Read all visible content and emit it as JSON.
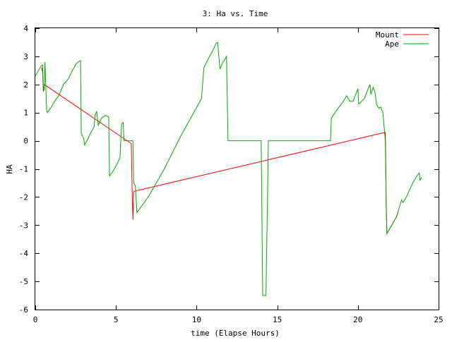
{
  "chart_data": {
    "type": "line",
    "title": "3: Ha vs. Time",
    "xlabel": "time (Elapse Hours)",
    "ylabel": "HA",
    "xlim": [
      0,
      25
    ],
    "ylim": [
      -6,
      4
    ],
    "xticks": [
      0,
      5,
      10,
      15,
      20,
      25
    ],
    "yticks": [
      -6,
      -5,
      -4,
      -3,
      -2,
      -1,
      0,
      1,
      2,
      3,
      4
    ],
    "grid": false,
    "legend_position": "top-right",
    "series": [
      {
        "name": "Mount",
        "color": "#ff0000",
        "points": [
          [
            0.38,
            2.6
          ],
          [
            0.45,
            2.45
          ],
          [
            0.5,
            1.75
          ],
          [
            0.55,
            2.0
          ],
          [
            5.95,
            -0.1
          ],
          [
            6.0,
            -1.6
          ],
          [
            6.02,
            -2.2
          ],
          [
            6.05,
            -2.8
          ],
          [
            6.1,
            -1.8
          ],
          [
            21.7,
            0.3
          ],
          [
            21.72,
            -0.5
          ],
          [
            21.75,
            -2.2
          ],
          [
            21.8,
            -3.3
          ],
          [
            22.4,
            -2.7
          ],
          [
            22.5,
            -2.5
          ]
        ]
      },
      {
        "name": "Ape",
        "color": "#00aa00",
        "points": [
          [
            0.0,
            2.3
          ],
          [
            0.35,
            2.65
          ],
          [
            0.45,
            2.7
          ],
          [
            0.5,
            1.8
          ],
          [
            0.55,
            1.8
          ],
          [
            0.6,
            2.8
          ],
          [
            0.62,
            2.4
          ],
          [
            0.7,
            1.1
          ],
          [
            0.75,
            1.0
          ],
          [
            1.0,
            1.2
          ],
          [
            1.2,
            1.4
          ],
          [
            1.45,
            1.6
          ],
          [
            1.75,
            2.0
          ],
          [
            1.9,
            2.1
          ],
          [
            2.05,
            2.2
          ],
          [
            2.3,
            2.5
          ],
          [
            2.55,
            2.75
          ],
          [
            2.8,
            2.85
          ],
          [
            2.85,
            0.25
          ],
          [
            3.0,
            0.1
          ],
          [
            3.05,
            -0.15
          ],
          [
            3.25,
            0.05
          ],
          [
            3.45,
            0.3
          ],
          [
            3.65,
            0.5
          ],
          [
            3.7,
            0.9
          ],
          [
            3.8,
            1.05
          ],
          [
            3.9,
            0.55
          ],
          [
            4.1,
            0.8
          ],
          [
            4.35,
            0.9
          ],
          [
            4.55,
            0.85
          ],
          [
            4.6,
            -1.25
          ],
          [
            4.8,
            -1.1
          ],
          [
            5.0,
            -0.9
          ],
          [
            5.25,
            -0.6
          ],
          [
            5.35,
            0.6
          ],
          [
            5.45,
            0.65
          ],
          [
            5.5,
            0.0
          ],
          [
            6.05,
            0.0
          ],
          [
            6.1,
            -1.5
          ],
          [
            6.2,
            -1.6
          ],
          [
            6.3,
            -2.55
          ],
          [
            7.0,
            -2.0
          ],
          [
            8.0,
            -1.0
          ],
          [
            9.0,
            0.15
          ],
          [
            10.3,
            1.5
          ],
          [
            10.45,
            2.6
          ],
          [
            10.8,
            3.0
          ],
          [
            11.0,
            3.2
          ],
          [
            11.2,
            3.45
          ],
          [
            11.3,
            3.5
          ],
          [
            11.45,
            2.55
          ],
          [
            11.6,
            2.75
          ],
          [
            11.85,
            3.0
          ],
          [
            11.95,
            0.0
          ],
          [
            14.0,
            0.0
          ],
          [
            14.1,
            -5.5
          ],
          [
            14.3,
            -5.5
          ],
          [
            14.45,
            0.0
          ],
          [
            18.3,
            0.0
          ],
          [
            18.35,
            0.8
          ],
          [
            18.7,
            1.1
          ],
          [
            19.1,
            1.4
          ],
          [
            19.3,
            1.6
          ],
          [
            19.5,
            1.4
          ],
          [
            19.7,
            1.4
          ],
          [
            19.9,
            1.7
          ],
          [
            20.0,
            1.85
          ],
          [
            20.05,
            1.3
          ],
          [
            20.4,
            1.5
          ],
          [
            20.6,
            1.8
          ],
          [
            20.75,
            2.0
          ],
          [
            20.8,
            1.65
          ],
          [
            20.95,
            1.9
          ],
          [
            21.05,
            1.75
          ],
          [
            21.15,
            1.3
          ],
          [
            21.3,
            1.15
          ],
          [
            21.4,
            1.2
          ],
          [
            21.55,
            1.0
          ],
          [
            21.7,
            0.0
          ],
          [
            21.75,
            -2.3
          ],
          [
            21.8,
            -3.3
          ],
          [
            22.4,
            -2.7
          ],
          [
            22.5,
            -2.5
          ],
          [
            22.7,
            -2.1
          ],
          [
            22.8,
            -2.2
          ],
          [
            23.0,
            -2.0
          ],
          [
            23.2,
            -1.75
          ],
          [
            23.4,
            -1.5
          ],
          [
            23.65,
            -1.25
          ],
          [
            23.8,
            -1.15
          ],
          [
            23.85,
            -1.4
          ],
          [
            23.95,
            -1.3
          ]
        ]
      }
    ]
  }
}
